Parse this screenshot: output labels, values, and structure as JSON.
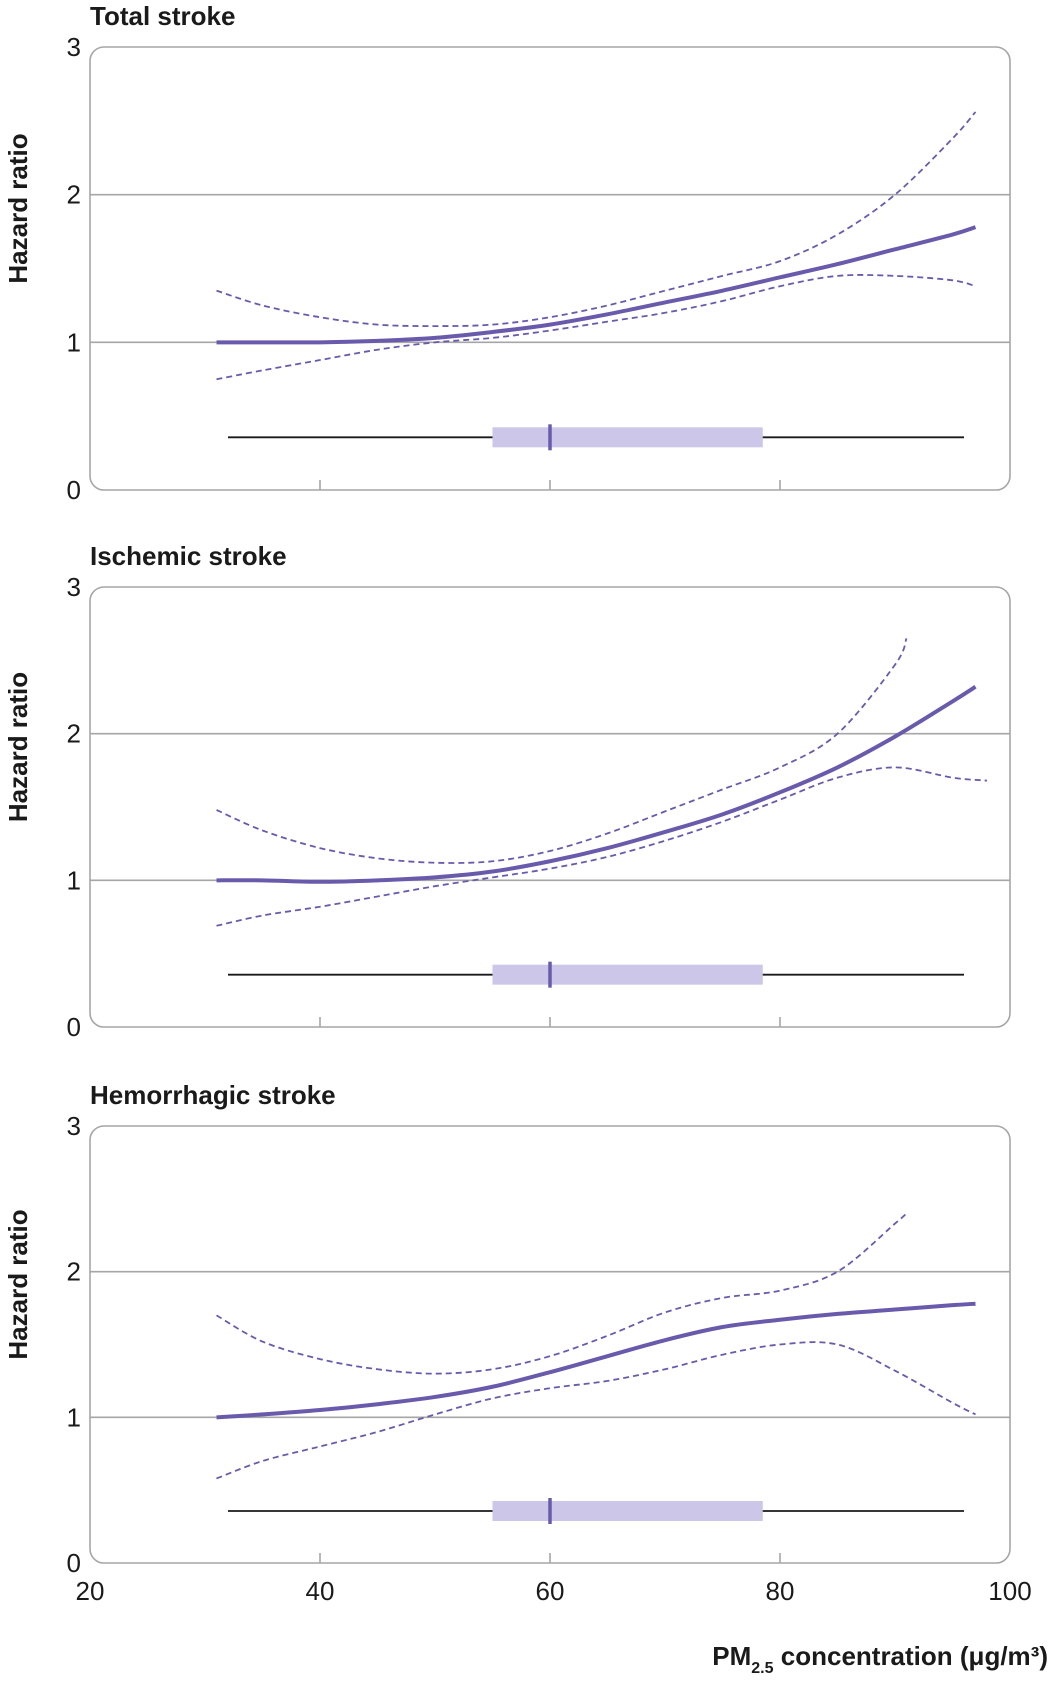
{
  "chart_data": [
    {
      "type": "line",
      "title": "Total stroke",
      "ylabel": "Hazard ratio",
      "xlim": [
        20,
        100
      ],
      "ylim": [
        0,
        3
      ],
      "yticks": [
        0,
        1,
        2,
        3
      ],
      "xticks": [
        40,
        60,
        80
      ],
      "grid_y": [
        1,
        2
      ],
      "series": [
        {
          "role": "estimate",
          "x": [
            31,
            35,
            40,
            45,
            50,
            55,
            60,
            65,
            70,
            75,
            80,
            85,
            90,
            95,
            97
          ],
          "y": [
            1.0,
            1.0,
            1.0,
            1.01,
            1.03,
            1.07,
            1.12,
            1.19,
            1.27,
            1.35,
            1.44,
            1.53,
            1.63,
            1.73,
            1.78
          ]
        },
        {
          "role": "upper-ci",
          "x": [
            31,
            35,
            40,
            45,
            50,
            55,
            60,
            65,
            70,
            75,
            80,
            85,
            90,
            95,
            97
          ],
          "y": [
            1.35,
            1.25,
            1.17,
            1.12,
            1.11,
            1.12,
            1.17,
            1.25,
            1.35,
            1.45,
            1.55,
            1.73,
            2.0,
            2.38,
            2.56
          ]
        },
        {
          "role": "lower-ci",
          "x": [
            31,
            35,
            40,
            45,
            50,
            55,
            60,
            65,
            70,
            75,
            80,
            85,
            90,
            95,
            97
          ],
          "y": [
            0.75,
            0.81,
            0.88,
            0.95,
            1.0,
            1.03,
            1.08,
            1.14,
            1.2,
            1.28,
            1.38,
            1.45,
            1.45,
            1.42,
            1.38
          ]
        }
      ],
      "distribution": {
        "min": 32,
        "q1": 55,
        "median": 60,
        "q3": 78.5,
        "max": 96,
        "y": 0.35
      }
    },
    {
      "type": "line",
      "title": "Ischemic stroke",
      "ylabel": "Hazard ratio",
      "xlim": [
        20,
        100
      ],
      "ylim": [
        0,
        3
      ],
      "yticks": [
        0,
        1,
        2,
        3
      ],
      "xticks": [
        40,
        60,
        80
      ],
      "grid_y": [
        1,
        2
      ],
      "series": [
        {
          "role": "estimate",
          "x": [
            31,
            35,
            40,
            45,
            50,
            55,
            60,
            65,
            70,
            75,
            80,
            85,
            90,
            95,
            97
          ],
          "y": [
            1.0,
            1.0,
            0.99,
            1.0,
            1.02,
            1.06,
            1.13,
            1.22,
            1.33,
            1.45,
            1.6,
            1.77,
            1.98,
            2.22,
            2.32
          ]
        },
        {
          "role": "upper-ci",
          "x": [
            31,
            35,
            40,
            45,
            50,
            55,
            60,
            65,
            70,
            75,
            80,
            85,
            90,
            91
          ],
          "y": [
            1.48,
            1.34,
            1.22,
            1.15,
            1.12,
            1.13,
            1.2,
            1.32,
            1.47,
            1.62,
            1.77,
            2.0,
            2.47,
            2.65
          ]
        },
        {
          "role": "lower-ci",
          "x": [
            31,
            35,
            40,
            45,
            50,
            55,
            60,
            65,
            70,
            75,
            80,
            85,
            90,
            95,
            98
          ],
          "y": [
            0.69,
            0.76,
            0.82,
            0.89,
            0.96,
            1.02,
            1.08,
            1.16,
            1.27,
            1.4,
            1.55,
            1.7,
            1.77,
            1.7,
            1.68
          ]
        }
      ],
      "distribution": {
        "min": 32,
        "q1": 55,
        "median": 60,
        "q3": 78.5,
        "max": 96,
        "y": 0.35
      }
    },
    {
      "type": "line",
      "title": "Hemorrhagic stroke",
      "ylabel": "Hazard ratio",
      "xlabel": "PM",
      "xlabel_sub": "2.5",
      "xlabel_rest": " concentration (μg/m³)",
      "xlim": [
        20,
        100
      ],
      "ylim": [
        0,
        3
      ],
      "yticks": [
        0,
        1,
        2,
        3
      ],
      "xticks": [
        20,
        40,
        60,
        80,
        100
      ],
      "grid_y": [
        1,
        2
      ],
      "series": [
        {
          "role": "estimate",
          "x": [
            31,
            35,
            40,
            45,
            50,
            55,
            60,
            65,
            70,
            75,
            80,
            85,
            90,
            95,
            97
          ],
          "y": [
            1.0,
            1.02,
            1.05,
            1.09,
            1.14,
            1.21,
            1.31,
            1.42,
            1.53,
            1.62,
            1.67,
            1.71,
            1.74,
            1.77,
            1.78
          ]
        },
        {
          "role": "upper-ci",
          "x": [
            31,
            35,
            40,
            45,
            50,
            55,
            60,
            65,
            70,
            75,
            80,
            85,
            90,
            91
          ],
          "y": [
            1.7,
            1.52,
            1.4,
            1.33,
            1.3,
            1.33,
            1.42,
            1.56,
            1.72,
            1.82,
            1.87,
            2.0,
            2.33,
            2.4
          ]
        },
        {
          "role": "lower-ci",
          "x": [
            31,
            35,
            40,
            45,
            50,
            55,
            60,
            65,
            70,
            75,
            80,
            85,
            90,
            95,
            97
          ],
          "y": [
            0.58,
            0.7,
            0.8,
            0.9,
            1.02,
            1.13,
            1.2,
            1.25,
            1.33,
            1.43,
            1.5,
            1.5,
            1.32,
            1.1,
            1.02
          ]
        }
      ],
      "distribution": {
        "min": 32,
        "q1": 55,
        "median": 60,
        "q3": 78.5,
        "max": 96,
        "y": 0.35
      }
    }
  ],
  "colors": {
    "estimate": "#6a5aac",
    "ci": "#6a5aac",
    "iqr_box": "#ccc6e8",
    "whisker": "#1a1a1a",
    "grid": "#a6a6a6",
    "frame": "#a6a6a6"
  }
}
